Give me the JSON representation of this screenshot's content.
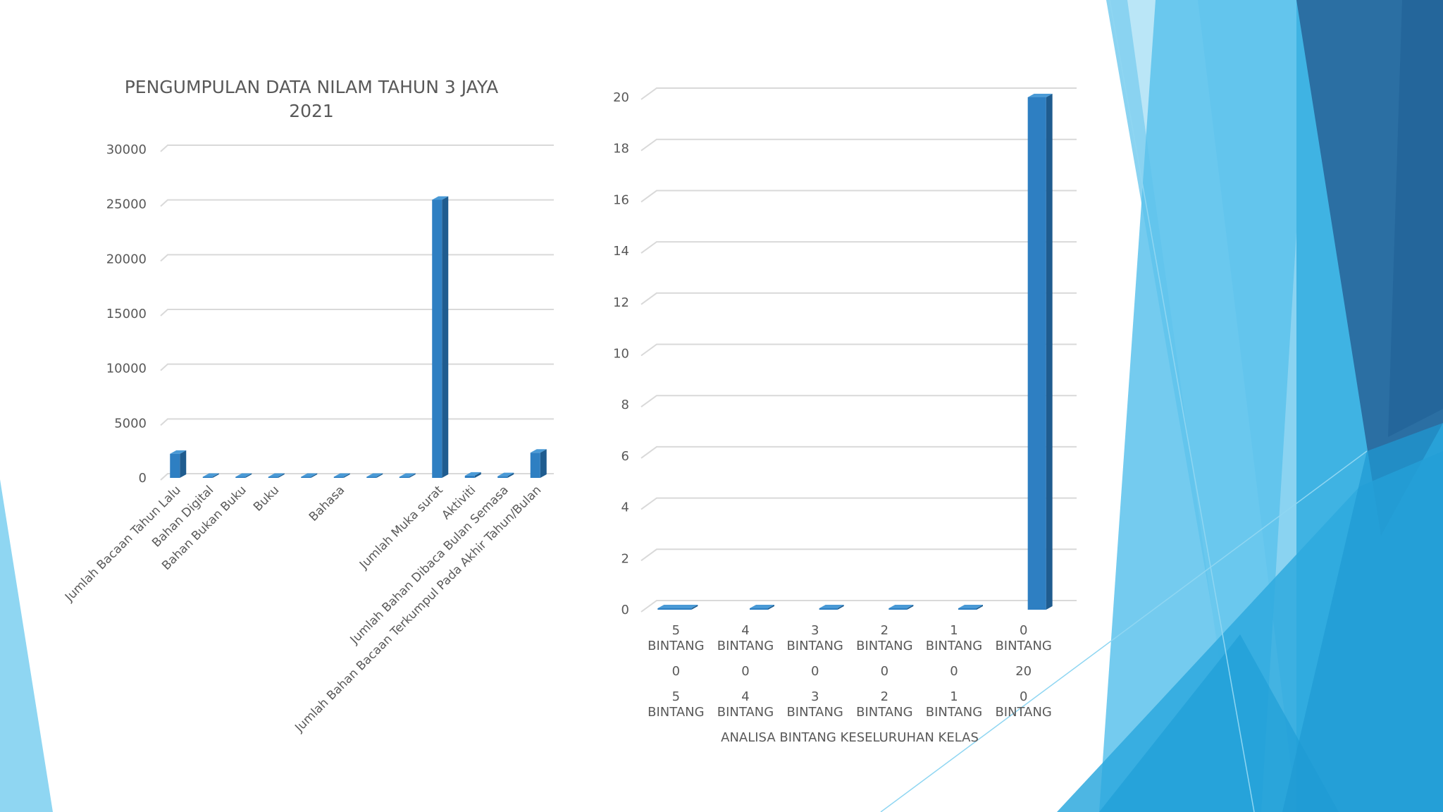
{
  "theme": {
    "bar_front": "#2e7fc2",
    "bar_side": "#1f5c8f",
    "bar_top": "#4a9ad6",
    "grid": "#d9d9d9",
    "text": "#595959",
    "shape_light": "#89d3f0",
    "shape_mid": "#3fb3e3",
    "shape_dark": "#2b6fa3"
  },
  "chart_data": [
    {
      "type": "bar",
      "title": "PENGUMPULAN DATA NILAM TAHUN 3 JAYA 2021",
      "title_lines": [
        "PENGUMPULAN DATA NILAM TAHUN 3 JAYA",
        "2021"
      ],
      "ylim": [
        0,
        30000
      ],
      "yticks": [
        0,
        5000,
        10000,
        15000,
        20000,
        25000,
        30000
      ],
      "grid": true,
      "categories": [
        "Jumlah Bacaan Tahun Lalu",
        "Bahan Digital",
        "Bahan Bukan Buku",
        "Buku",
        "",
        "Bahasa",
        "",
        "",
        "Jumlah Muka surat",
        "Aktiviti",
        "Jumlah Bahan Dibaca Bulan Semasa",
        "Jumlah Bahan Bacaan Terkumpul Pada Akhir Tahun/Bulan"
      ],
      "values": [
        2200,
        0,
        0,
        50,
        50,
        80,
        80,
        50,
        25400,
        200,
        150,
        2300
      ]
    },
    {
      "type": "bar",
      "xlabel": "ANALISA BINTANG KESELURUHAN KELAS",
      "ylim": [
        0,
        20
      ],
      "yticks": [
        0,
        2,
        4,
        6,
        8,
        10,
        12,
        14,
        16,
        18,
        20
      ],
      "grid": true,
      "categories": [
        "5 BINTANG",
        "4 BINTANG",
        "3 BINTANG",
        "2 BINTANG",
        "1 BINTANG",
        "0 BINTANG"
      ],
      "category_lines": [
        [
          "5",
          "BINTANG"
        ],
        [
          "4",
          "BINTANG"
        ],
        [
          "3",
          "BINTANG"
        ],
        [
          "2",
          "BINTANG"
        ],
        [
          "1",
          "BINTANG"
        ],
        [
          "0",
          "BINTANG"
        ]
      ],
      "values": [
        0,
        0,
        0,
        0,
        0,
        20
      ],
      "table": {
        "values_row": [
          "0",
          "0",
          "0",
          "0",
          "0",
          "20"
        ],
        "series_row": [
          [
            "5",
            "BINTANG"
          ],
          [
            "4",
            "BINTANG"
          ],
          [
            "3",
            "BINTANG"
          ],
          [
            "2",
            "BINTANG"
          ],
          [
            "1",
            "BINTANG"
          ],
          [
            "0",
            "BINTANG"
          ]
        ]
      }
    }
  ]
}
